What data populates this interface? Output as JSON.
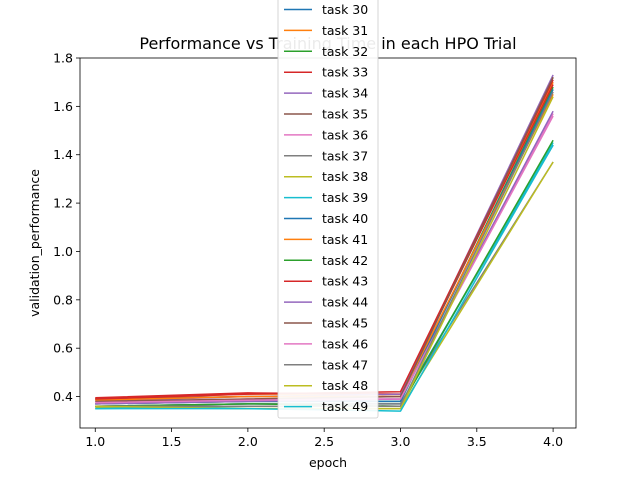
{
  "chart_data": {
    "type": "line",
    "title": "Performance vs Training Time in each HPO Trial",
    "xlabel": "epoch",
    "ylabel": "validation_performance",
    "x": [
      1.0,
      2.0,
      3.0,
      4.0
    ],
    "xlim": [
      0.9,
      4.15
    ],
    "ylim": [
      0.27,
      1.8
    ],
    "xticks": [
      "1.0",
      "1.5",
      "2.0",
      "2.5",
      "3.0",
      "3.5",
      "4.0"
    ],
    "yticks": [
      "0.4",
      "0.6",
      "0.8",
      "1.0",
      "1.2",
      "1.4",
      "1.6",
      "1.8"
    ],
    "grid": false,
    "legend": "top-center",
    "series": [
      {
        "name": "task 30",
        "color": "#1f77b4",
        "values": [
          0.36,
          0.37,
          0.37,
          1.44
        ]
      },
      {
        "name": "task 31",
        "color": "#ff7f0e",
        "values": [
          0.39,
          0.41,
          0.41,
          1.7
        ]
      },
      {
        "name": "task 32",
        "color": "#2ca02c",
        "values": [
          0.37,
          0.38,
          0.38,
          1.68
        ]
      },
      {
        "name": "task 33",
        "color": "#d62728",
        "values": [
          0.395,
          0.415,
          0.41,
          1.69
        ]
      },
      {
        "name": "task 34",
        "color": "#9467bd",
        "values": [
          0.38,
          0.4,
          0.41,
          1.73
        ]
      },
      {
        "name": "task 35",
        "color": "#8c564b",
        "values": [
          0.39,
          0.4,
          0.4,
          1.72
        ]
      },
      {
        "name": "task 36",
        "color": "#e377c2",
        "values": [
          0.37,
          0.39,
          0.39,
          1.57
        ]
      },
      {
        "name": "task 37",
        "color": "#7f7f7f",
        "values": [
          0.36,
          0.37,
          0.37,
          1.37
        ]
      },
      {
        "name": "task 38",
        "color": "#bcbd22",
        "values": [
          0.355,
          0.35,
          0.35,
          1.37
        ]
      },
      {
        "name": "task 39",
        "color": "#17becf",
        "values": [
          0.35,
          0.36,
          0.36,
          1.45
        ]
      },
      {
        "name": "task 40",
        "color": "#1f77b4",
        "values": [
          0.37,
          0.38,
          0.38,
          1.67
        ]
      },
      {
        "name": "task 41",
        "color": "#ff7f0e",
        "values": [
          0.385,
          0.4,
          0.4,
          1.65
        ]
      },
      {
        "name": "task 42",
        "color": "#2ca02c",
        "values": [
          0.36,
          0.37,
          0.36,
          1.46
        ]
      },
      {
        "name": "task 43",
        "color": "#d62728",
        "values": [
          0.39,
          0.41,
          0.42,
          1.71
        ]
      },
      {
        "name": "task 44",
        "color": "#9467bd",
        "values": [
          0.37,
          0.38,
          0.39,
          1.58
        ]
      },
      {
        "name": "task 45",
        "color": "#8c564b",
        "values": [
          0.38,
          0.39,
          0.4,
          1.72
        ]
      },
      {
        "name": "task 46",
        "color": "#e377c2",
        "values": [
          0.375,
          0.385,
          0.39,
          1.56
        ]
      },
      {
        "name": "task 47",
        "color": "#7f7f7f",
        "values": [
          0.36,
          0.36,
          0.36,
          1.66
        ]
      },
      {
        "name": "task 48",
        "color": "#bcbd22",
        "values": [
          0.36,
          0.35,
          0.35,
          1.64
        ]
      },
      {
        "name": "task 49",
        "color": "#17becf",
        "values": [
          0.35,
          0.35,
          0.34,
          1.44
        ]
      }
    ]
  }
}
